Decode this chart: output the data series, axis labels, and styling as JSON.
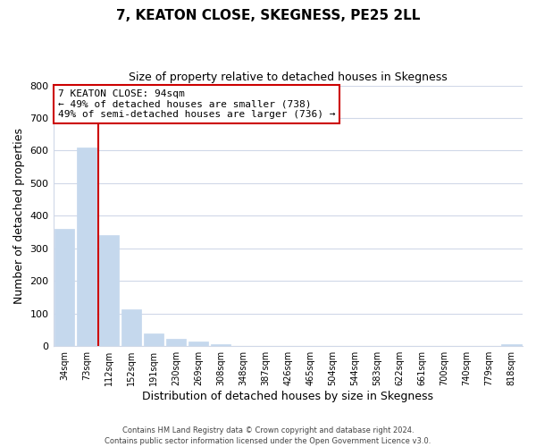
{
  "title": "7, KEATON CLOSE, SKEGNESS, PE25 2LL",
  "subtitle": "Size of property relative to detached houses in Skegness",
  "xlabel": "Distribution of detached houses by size in Skegness",
  "ylabel": "Number of detached properties",
  "bar_labels": [
    "34sqm",
    "73sqm",
    "112sqm",
    "152sqm",
    "191sqm",
    "230sqm",
    "269sqm",
    "308sqm",
    "348sqm",
    "387sqm",
    "426sqm",
    "465sqm",
    "504sqm",
    "544sqm",
    "583sqm",
    "622sqm",
    "661sqm",
    "700sqm",
    "740sqm",
    "779sqm",
    "818sqm"
  ],
  "bar_values": [
    360,
    610,
    340,
    113,
    40,
    22,
    14,
    5,
    0,
    0,
    0,
    0,
    0,
    0,
    0,
    0,
    0,
    0,
    0,
    0,
    5
  ],
  "bar_color": "#c5d8ed",
  "vline_color": "#cc0000",
  "annotation_line1": "7 KEATON CLOSE: 94sqm",
  "annotation_line2": "← 49% of detached houses are smaller (738)",
  "annotation_line3": "49% of semi-detached houses are larger (736) →",
  "annotation_box_color": "#ffffff",
  "annotation_box_edge": "#cc0000",
  "ylim": [
    0,
    800
  ],
  "yticks": [
    0,
    100,
    200,
    300,
    400,
    500,
    600,
    700,
    800
  ],
  "footer": "Contains HM Land Registry data © Crown copyright and database right 2024.\nContains public sector information licensed under the Open Government Licence v3.0.",
  "bg_color": "#ffffff",
  "grid_color": "#d0d8e8",
  "title_fontsize": 11,
  "subtitle_fontsize": 9
}
